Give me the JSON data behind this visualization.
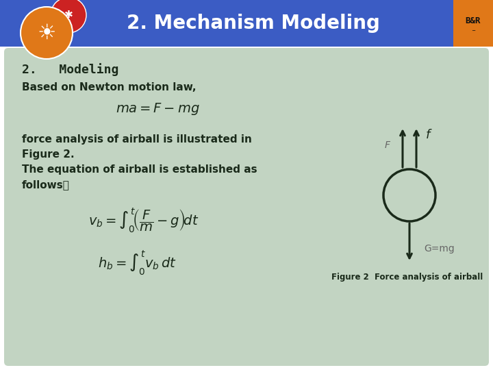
{
  "title": "2. Mechanism Modeling",
  "title_bg_color": "#3B5CC4",
  "title_text_color": "#FFFFFF",
  "slide_bg_color": "#FFFFFF",
  "content_bg_color": "#C2D4C2",
  "heading": "2.   Modeling",
  "line1": "Based on Newton motion law,",
  "fig_caption": "Figure 2  Force analysis of airball",
  "arrow_color": "#1a2a1a",
  "ball_color": "#1a2a1a",
  "label_F": "F",
  "label_f": "f",
  "label_G": "G=mg",
  "text_color": "#1a2a1a",
  "header_bar_color": "#3B5CC4",
  "orange_accent": "#E07818"
}
